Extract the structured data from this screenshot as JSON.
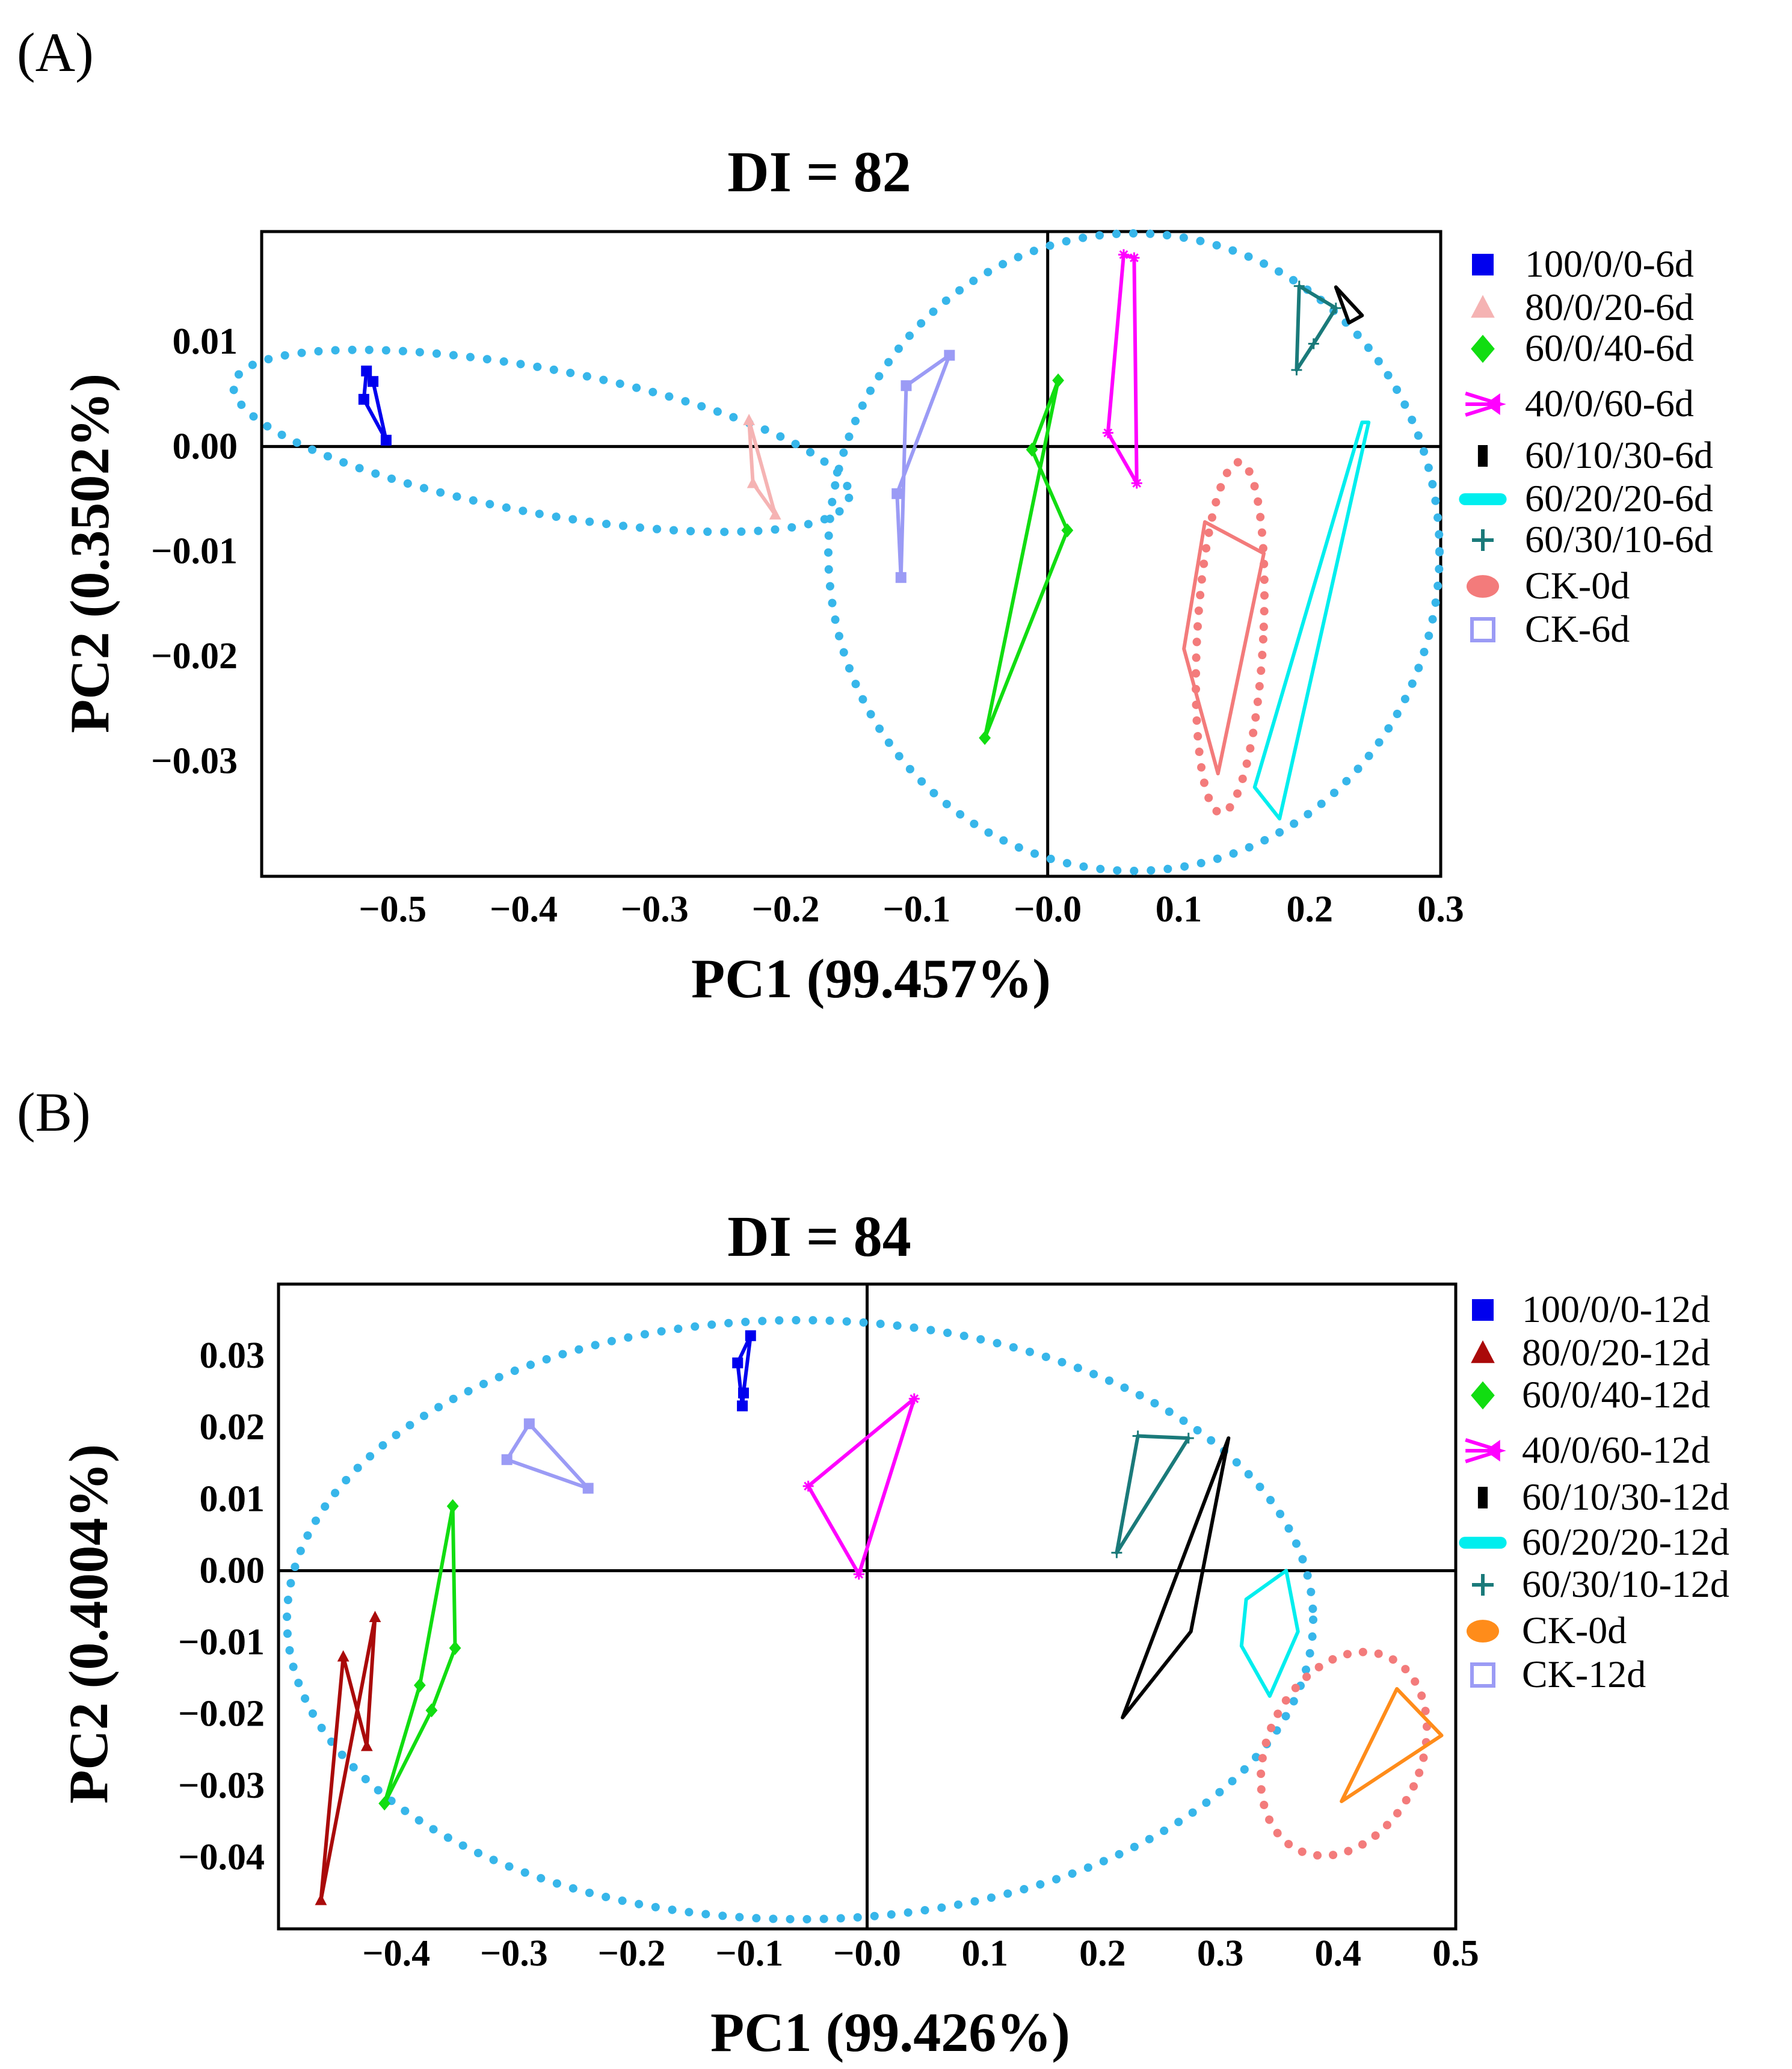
{
  "chart_data": [
    {
      "panel_label": "(A)",
      "type": "scatter",
      "title": "DI = 82",
      "xlabel": "PC1 (99.457%)",
      "ylabel": "PC2 (0.3502%)",
      "xlim": [
        -0.6,
        0.3
      ],
      "ylim": [
        -0.041,
        0.0205
      ],
      "xticks": [
        -0.5,
        -0.4,
        -0.3,
        -0.2,
        -0.1,
        0.0,
        0.1,
        0.2,
        0.3
      ],
      "xtick_labels": [
        "−0.5",
        "−0.4",
        "−0.3",
        "−0.2",
        "−0.1",
        "−0.0",
        "0.1",
        "0.2",
        "0.3"
      ],
      "yticks": [
        0.01,
        0.0,
        -0.01,
        -0.02,
        -0.03
      ],
      "ytick_labels": [
        "0.01",
        "0.00",
        "−0.01",
        "−0.02",
        "−0.03"
      ],
      "grid": false,
      "legend_position": "right",
      "series": [
        {
          "name": "100/0/0-6d",
          "color": "#0000ee",
          "marker": "square",
          "legend_marker": "square",
          "points": [
            [
              -0.52,
              0.0072
            ],
            [
              -0.515,
              0.0062
            ],
            [
              -0.505,
              0.0006
            ],
            [
              -0.522,
              0.0045
            ]
          ]
        },
        {
          "name": "80/0/20-6d",
          "color": "#f5b3b3",
          "marker": "triangle",
          "legend_marker": "triangle",
          "points": [
            [
              -0.228,
              0.0025
            ],
            [
              -0.208,
              -0.0065
            ],
            [
              -0.225,
              -0.0035
            ]
          ]
        },
        {
          "name": "60/0/40-6d",
          "color": "#11dd11",
          "marker": "diamond",
          "legend_marker": "diamond",
          "points": [
            [
              -0.048,
              -0.0278
            ],
            [
              0.008,
              0.0063
            ],
            [
              -0.012,
              -0.0003
            ],
            [
              0.015,
              -0.008
            ]
          ]
        },
        {
          "name": "40/0/60-6d",
          "color": "#ff00ff",
          "marker": "star",
          "legend_marker": "bowtie",
          "points": [
            [
              0.066,
              0.018
            ],
            [
              0.068,
              -0.0035
            ],
            [
              0.046,
              0.0013
            ],
            [
              0.058,
              0.0183
            ]
          ]
        },
        {
          "name": "60/10/30-6d",
          "color": "#000000",
          "marker": "none",
          "legend_marker": "bar",
          "points": [
            [
              0.22,
              0.0152
            ],
            [
              0.24,
              0.0125
            ],
            [
              0.23,
              0.0118
            ]
          ]
        },
        {
          "name": "60/20/20-6d",
          "color": "#00eeee",
          "marker": "none",
          "legend_marker": "pill",
          "points": [
            [
              0.24,
              0.0023
            ],
            [
              0.158,
              -0.0325
            ],
            [
              0.177,
              -0.0355
            ],
            [
              0.245,
              0.0023
            ]
          ]
        },
        {
          "name": "60/30/10-6d",
          "color": "#1a7a7a",
          "marker": "plus",
          "legend_marker": "plus",
          "points": [
            [
              0.192,
              0.0153
            ],
            [
              0.22,
              0.0132
            ],
            [
              0.203,
              0.0098
            ],
            [
              0.19,
              0.0073
            ]
          ]
        },
        {
          "name": "CK-0d",
          "color": "#f37b7b",
          "marker": "none",
          "legend_marker": "ellipse",
          "points": [
            [
              0.12,
              -0.0072
            ],
            [
              0.165,
              -0.0102
            ],
            [
              0.13,
              -0.0312
            ],
            [
              0.104,
              -0.0193
            ]
          ]
        },
        {
          "name": "CK-6d",
          "color": "#9b9bf5",
          "marker": "square",
          "legend_marker": "open-square",
          "points": [
            [
              -0.075,
              0.0087
            ],
            [
              -0.108,
              0.0058
            ],
            [
              -0.112,
              -0.0125
            ],
            [
              -0.115,
              -0.0045
            ]
          ]
        }
      ]
    },
    {
      "panel_label": "(B)",
      "type": "scatter",
      "title": "DI = 84",
      "xlabel": "PC1 (99.426%)",
      "ylabel": "PC2 (0.4004%)",
      "xlim": [
        -0.5,
        0.5
      ],
      "ylim": [
        -0.05,
        0.04
      ],
      "xticks": [
        -0.4,
        -0.3,
        -0.2,
        -0.1,
        0.0,
        0.1,
        0.2,
        0.3,
        0.4,
        0.5
      ],
      "xtick_labels": [
        "−0.4",
        "−0.3",
        "−0.2",
        "−0.1",
        "−0.0",
        "0.1",
        "0.2",
        "0.3",
        "0.4",
        "0.5"
      ],
      "yticks": [
        0.03,
        0.02,
        0.01,
        0.0,
        -0.01,
        -0.02,
        -0.03,
        -0.04
      ],
      "ytick_labels": [
        "0.03",
        "0.02",
        "0.01",
        "0.00",
        "−0.01",
        "−0.02",
        "−0.03",
        "−0.04"
      ],
      "grid": false,
      "legend_position": "right",
      "series": [
        {
          "name": "100/0/0-12d",
          "color": "#0000ee",
          "marker": "square",
          "legend_marker": "square",
          "points": [
            [
              -0.099,
              0.0328
            ],
            [
              -0.11,
              0.029
            ],
            [
              -0.106,
              0.023
            ],
            [
              -0.105,
              0.0248
            ]
          ]
        },
        {
          "name": "80/0/20-12d",
          "color": "#aa0a0a",
          "marker": "triangle",
          "legend_marker": "triangle",
          "points": [
            [
              -0.464,
              -0.046
            ],
            [
              -0.418,
              -0.0065
            ],
            [
              -0.425,
              -0.0245
            ],
            [
              -0.445,
              -0.012
            ]
          ]
        },
        {
          "name": "60/0/40-12d",
          "color": "#11dd11",
          "marker": "diamond",
          "legend_marker": "diamond",
          "points": [
            [
              -0.352,
              0.009
            ],
            [
              -0.35,
              -0.0108
            ],
            [
              -0.37,
              -0.0195
            ],
            [
              -0.41,
              -0.0325
            ],
            [
              -0.38,
              -0.016
            ]
          ]
        },
        {
          "name": "40/0/60-12d",
          "color": "#ff00ff",
          "marker": "star",
          "legend_marker": "bowtie",
          "points": [
            [
              0.04,
              0.024
            ],
            [
              -0.05,
              0.0118
            ],
            [
              -0.007,
              -0.0005
            ]
          ]
        },
        {
          "name": "60/10/30-12d",
          "color": "#000000",
          "marker": "none",
          "legend_marker": "bar",
          "points": [
            [
              0.307,
              0.0185
            ],
            [
              0.275,
              -0.0085
            ],
            [
              0.217,
              -0.0205
            ]
          ]
        },
        {
          "name": "60/20/20-12d",
          "color": "#00eeee",
          "marker": "none",
          "legend_marker": "pill",
          "points": [
            [
              0.356,
              0.0
            ],
            [
              0.366,
              -0.0085
            ],
            [
              0.342,
              -0.0175
            ],
            [
              0.318,
              -0.0105
            ],
            [
              0.322,
              -0.004
            ]
          ]
        },
        {
          "name": "60/30/10-12d",
          "color": "#1a7a7a",
          "marker": "plus",
          "legend_marker": "plus",
          "points": [
            [
              0.23,
              0.0188
            ],
            [
              0.273,
              0.0185
            ],
            [
              0.212,
              0.0025
            ]
          ]
        },
        {
          "name": "CK-0d",
          "color": "#ff8c1a",
          "marker": "none",
          "legend_marker": "ellipse",
          "points": [
            [
              0.45,
              -0.0165
            ],
            [
              0.488,
              -0.023
            ],
            [
              0.403,
              -0.0322
            ]
          ]
        },
        {
          "name": "CK-12d",
          "color": "#9b9bf5",
          "marker": "square",
          "legend_marker": "open-square",
          "points": [
            [
              -0.287,
              0.0205
            ],
            [
              -0.237,
              0.0115
            ],
            [
              -0.306,
              0.0155
            ]
          ]
        }
      ]
    }
  ]
}
